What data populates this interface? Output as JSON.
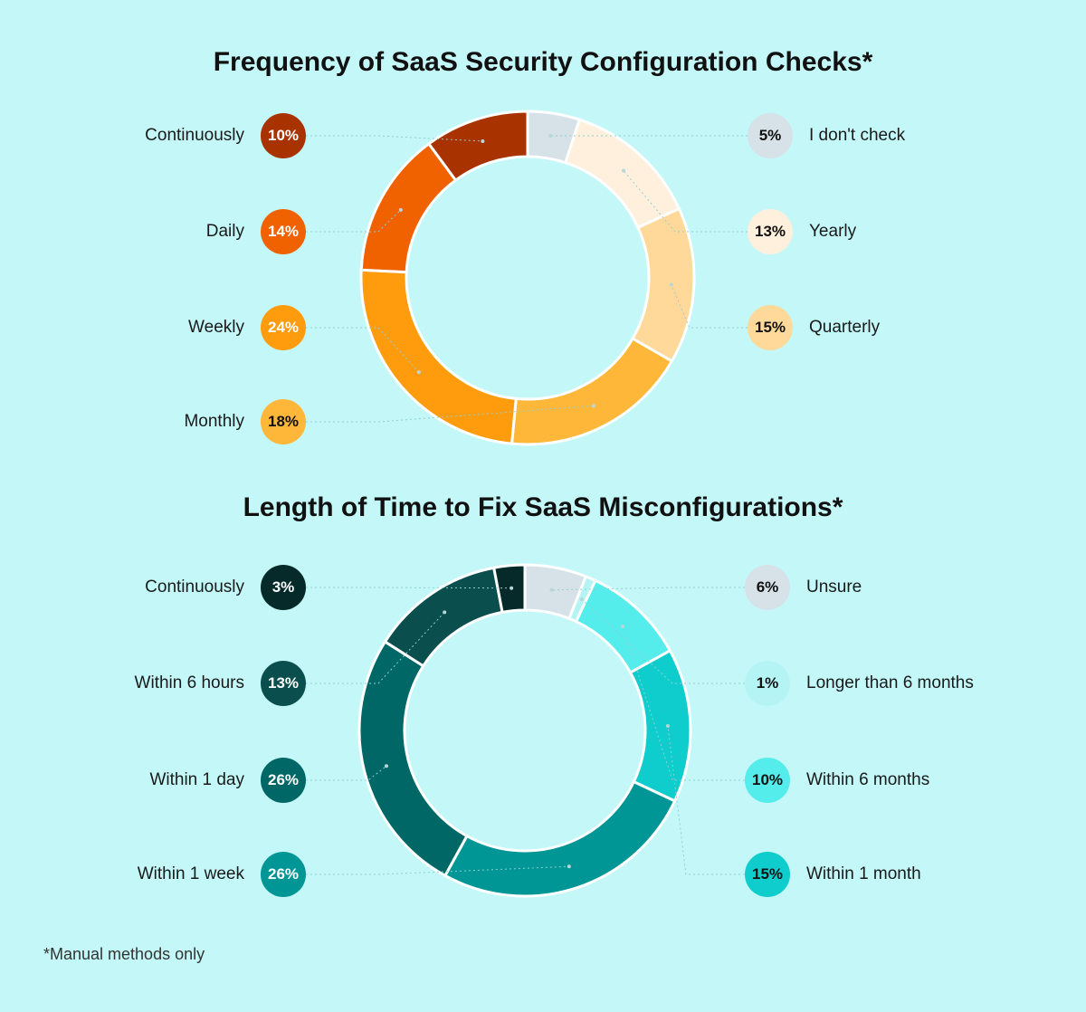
{
  "footnote": "*Manual methods only",
  "chart_data": [
    {
      "type": "pie",
      "title": "Frequency of SaaS Security Configuration Checks*",
      "slices": [
        {
          "label": "I don't check",
          "value": 5,
          "display": "5%",
          "color": "#d6e1e8",
          "text_color": "#111111",
          "side": "right"
        },
        {
          "label": "Yearly",
          "value": 13,
          "display": "13%",
          "color": "#fff0dd",
          "text_color": "#111111",
          "side": "right"
        },
        {
          "label": "Quarterly",
          "value": 15,
          "display": "15%",
          "color": "#ffd99a",
          "text_color": "#111111",
          "side": "right"
        },
        {
          "label": "Monthly",
          "value": 18,
          "display": "18%",
          "color": "#ffb73a",
          "text_color": "#111111",
          "side": "left"
        },
        {
          "label": "Weekly",
          "value": 24,
          "display": "24%",
          "color": "#ff9c0e",
          "text_color": "#ffffff",
          "side": "left"
        },
        {
          "label": "Daily",
          "value": 14,
          "display": "14%",
          "color": "#f06200",
          "text_color": "#ffffff",
          "side": "left"
        },
        {
          "label": "Continuously",
          "value": 10,
          "display": "10%",
          "color": "#a83200",
          "text_color": "#ffffff",
          "side": "left"
        }
      ]
    },
    {
      "type": "pie",
      "title": "Length of Time to Fix SaaS Misconfigurations*",
      "slices": [
        {
          "label": "Unsure",
          "value": 6,
          "display": "6%",
          "color": "#d6e1e8",
          "text_color": "#111111",
          "side": "right"
        },
        {
          "label": "Longer than 6 months",
          "value": 1,
          "display": "1%",
          "color": "#b5f4f4",
          "text_color": "#111111",
          "side": "right"
        },
        {
          "label": "Within 6 months",
          "value": 10,
          "display": "10%",
          "color": "#55ecec",
          "text_color": "#111111",
          "side": "right"
        },
        {
          "label": "Within 1 month",
          "value": 15,
          "display": "15%",
          "color": "#10cdcd",
          "text_color": "#111111",
          "side": "right"
        },
        {
          "label": "Within 1 week",
          "value": 26,
          "display": "26%",
          "color": "#009696",
          "text_color": "#ffffff",
          "side": "left"
        },
        {
          "label": "Within 1 day",
          "value": 26,
          "display": "26%",
          "color": "#006767",
          "text_color": "#ffffff",
          "side": "left"
        },
        {
          "label": "Within 6 hours",
          "value": 13,
          "display": "13%",
          "color": "#0b4e4e",
          "text_color": "#ffffff",
          "side": "left"
        },
        {
          "label": "Continuously",
          "value": 3,
          "display": "3%",
          "color": "#062a2a",
          "text_color": "#ffffff",
          "side": "left"
        }
      ]
    }
  ]
}
